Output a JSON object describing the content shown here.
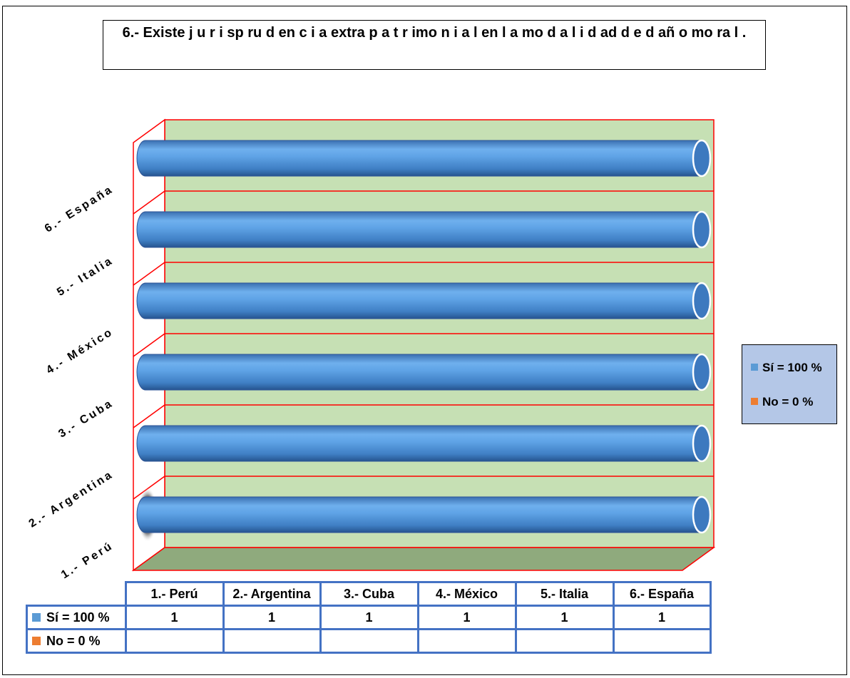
{
  "chart_data": {
    "type": "bar",
    "orientation": "horizontal",
    "three_d": true,
    "title": "6.- Existe j u r i sp ru d en c i a extra p a t r imo n i a l en l a mo d a l i d ad d e d añ o mo ra l .",
    "categories": [
      "1.- Perú",
      "2.- Argentina",
      "3.- Cuba",
      "4.- México",
      "5.- Italia",
      "6.- España"
    ],
    "series": [
      {
        "name": "Sí = 100 %",
        "values": [
          1,
          1,
          1,
          1,
          1,
          1
        ],
        "color": "#5b9bd5"
      },
      {
        "name": "No = 0 %",
        "values": [
          null,
          null,
          null,
          null,
          null,
          null
        ],
        "color": "#ed7d31"
      }
    ],
    "xlim": [
      0,
      1
    ],
    "legend_position": "right",
    "data_table": true,
    "colors": {
      "wall": "#c6e0b4",
      "floor": "#8faa7d",
      "gridline": "#ff0000",
      "legend_bg": "#b4c7e7",
      "table_border": "#4472c4"
    }
  }
}
